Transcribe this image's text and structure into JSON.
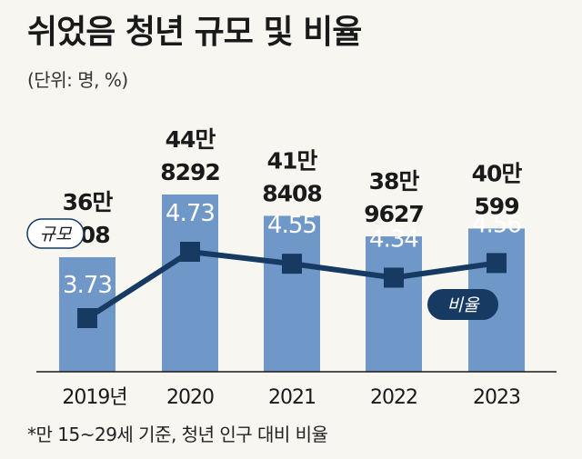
{
  "title": "쉬었음 청년 규모 및 비율",
  "unit_note": "(단위: 명, %)",
  "footnote": "*만 15~29세 기준, 청년 인구 대비 비율",
  "legend": {
    "scale_label": "규모",
    "rate_label": "비율"
  },
  "colors": {
    "bar": "#6f97c7",
    "line": "#173a63",
    "rate_text": "#ffffff",
    "background": "#f7f6f1"
  },
  "chart_data": {
    "type": "bar",
    "categories": [
      "2019년",
      "2020",
      "2021",
      "2022",
      "2023"
    ],
    "series": [
      {
        "name": "규모",
        "type": "bar",
        "values": [
          360408,
          448292,
          418408,
          389627,
          400599
        ],
        "labels": [
          [
            "36만",
            "408"
          ],
          [
            "44만",
            "8292"
          ],
          [
            "41만",
            "8408"
          ],
          [
            "38만",
            "9627"
          ],
          [
            "40만",
            "599"
          ]
        ]
      },
      {
        "name": "비율",
        "type": "line",
        "values": [
          3.73,
          4.73,
          4.55,
          4.34,
          4.56
        ],
        "labels": [
          "3.73",
          "4.73",
          "4.55",
          "4.34",
          "4.56"
        ]
      }
    ],
    "title": "쉬었음 청년 규모 및 비율",
    "unit": "(단위: 명, %)"
  }
}
